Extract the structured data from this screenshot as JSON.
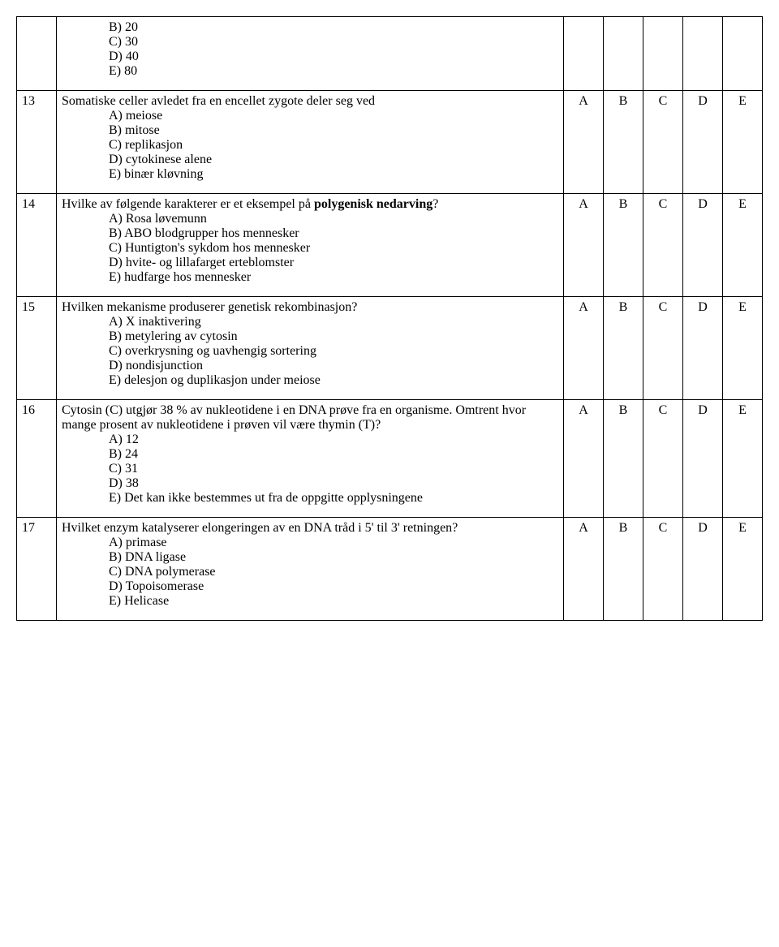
{
  "prev_options": [
    "B)  20",
    "C)  30",
    "D)  40",
    "E)  80"
  ],
  "answers": [
    "A",
    "B",
    "C",
    "D",
    "E"
  ],
  "q13": {
    "num": "13",
    "stem": "Somatiske celler avledet fra en encellet zygote deler seg ved",
    "opts": [
      "A)  meiose",
      "B)  mitose",
      "C)  replikasjon",
      "D)  cytokinese alene",
      "E)  binær kløvning"
    ]
  },
  "q14": {
    "num": "14",
    "stem_before": "Hvilke av følgende karakterer er et eksempel på ",
    "stem_bold": "polygenisk nedarving",
    "stem_after": "?",
    "opts": [
      "A)  Rosa løvemunn",
      "B)  ABO blodgrupper hos mennesker",
      "C)  Huntigton's sykdom hos mennesker",
      "D)  hvite- og lillafarget erteblomster",
      "E)  hudfarge hos mennesker"
    ]
  },
  "q15": {
    "num": "15",
    "stem": "Hvilken mekanisme produserer genetisk rekombinasjon?",
    "opts": [
      "A)  X inaktivering",
      "B)  metylering av cytosin",
      "C)  overkrysning og uavhengig sortering",
      "D)  nondisjunction",
      "E)  delesjon og duplikasjon under meiose"
    ]
  },
  "q16": {
    "num": "16",
    "stem": "Cytosin (C) utgjør 38 % av nukleotidene i en DNA prøve fra en organisme. Omtrent hvor mange prosent av nukleotidene i prøven vil være thymin (T)?",
    "opts": [
      "A)  12",
      "B)  24",
      "C)  31",
      "D)  38",
      "E)  Det kan ikke bestemmes ut fra de oppgitte opplysningene"
    ]
  },
  "q17": {
    "num": "17",
    "stem": "Hvilket enzym katalyserer elongeringen av en DNA tråd i 5' til 3' retningen?",
    "opts": [
      "A)  primase",
      "B)  DNA ligase",
      "C)  DNA polymerase",
      "D)  Topoisomerase",
      "E)  Helicase"
    ]
  }
}
